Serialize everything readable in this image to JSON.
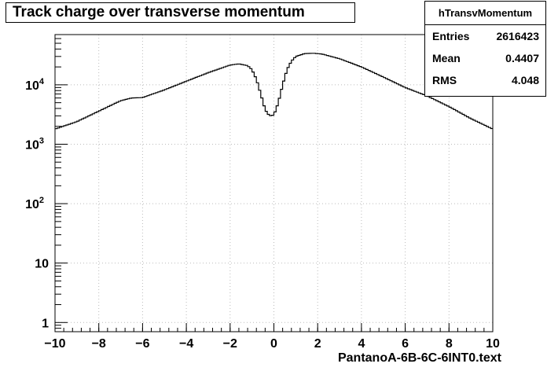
{
  "chart_data": {
    "type": "histogram",
    "title": "Track charge over transverse momentum",
    "xlabel": "PantanoA-6B-6C-6INT0.text",
    "ylabel": "",
    "xlim": [
      -10,
      10
    ],
    "ylim": [
      0.7,
      70000
    ],
    "yscale": "log",
    "grid": true,
    "x_ticks": [
      "−10",
      "−8",
      "−6",
      "−4",
      "−2",
      "0",
      "2",
      "4",
      "6",
      "8",
      "10"
    ],
    "y_ticks": [
      "1",
      "10",
      "10",
      "10",
      "10"
    ],
    "y_tick_exponents": [
      "",
      "",
      "2",
      "3",
      "4"
    ],
    "series": [
      {
        "x": [
          -10,
          -9,
          -8,
          -7,
          -6.5,
          -6,
          -5,
          -4,
          -3,
          -2,
          -1.6,
          -1.2,
          -1,
          -0.8,
          -0.6,
          -0.4,
          -0.2,
          0,
          0.2,
          0.4,
          0.6,
          0.8,
          1,
          1.4,
          1.8,
          2.2,
          3,
          4,
          5,
          6,
          7,
          8,
          9,
          10
        ],
        "values": [
          1800,
          2400,
          3600,
          5400,
          6000,
          6100,
          8200,
          11500,
          16000,
          21500,
          22500,
          21000,
          18000,
          12500,
          7000,
          3800,
          3000,
          3100,
          5000,
          10000,
          18000,
          25000,
          30000,
          33500,
          34000,
          33000,
          27500,
          20000,
          13500,
          9000,
          6500,
          4300,
          2700,
          1800
        ]
      }
    ],
    "stats": {
      "name": "hTransvMomentum",
      "rows": [
        {
          "label": "Entries",
          "value": "2616423"
        },
        {
          "label": "Mean",
          "value": "0.4407"
        },
        {
          "label": "RMS",
          "value": "4.048"
        }
      ]
    }
  }
}
